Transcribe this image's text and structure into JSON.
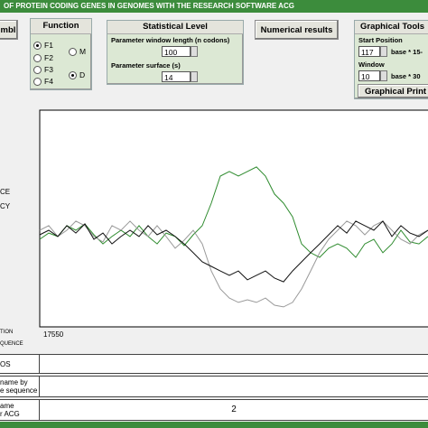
{
  "header": {
    "title": "OF PROTEIN CODING GENES IN GENOMES WITH THE RESEARCH SOFTWARE ACG"
  },
  "buttons": {
    "left": "mbl",
    "numerical": "Numerical results",
    "print": "Graphical Print"
  },
  "function_panel": {
    "title": "Function",
    "options": [
      "F1",
      "F2",
      "F3",
      "F4"
    ],
    "strands": [
      "M",
      "D"
    ]
  },
  "statistical_panel": {
    "title": "Statistical Level",
    "window_label": "Parameter window length (n codons)",
    "window_value": 100,
    "surface_label": "Parameter surface (s)",
    "surface_value": 14
  },
  "tools_panel": {
    "title": "Graphical Tools",
    "start_label": "Start Position",
    "start_value": 117,
    "start_unit": "base * 15-",
    "window_label": "Window",
    "window_value": 10,
    "window_unit": "base * 30"
  },
  "side_labels": [
    "CE",
    "CY",
    "TION",
    "QUENCE"
  ],
  "position": 17550,
  "table": {
    "rows": [
      {
        "label": [
          "OS"
        ]
      },
      {
        "label": [
          "name by",
          "e sequence"
        ]
      },
      {
        "label": [
          "ame",
          "r ACG"
        ],
        "value": 2
      }
    ]
  },
  "plot": {
    "ylim": [
      0,
      100
    ],
    "series": [
      {
        "color": "#2e8b2e",
        "values": [
          40.4,
          43.3,
          41.7,
          46.7,
          44.6,
          47.5,
          42.5,
          38.3,
          41.7,
          44.6,
          41.7,
          46.7,
          41.7,
          38.3,
          43.3,
          41.7,
          37.5,
          42.5,
          46.7,
          57.1,
          69.6,
          71.7,
          69.6,
          71.7,
          73.8,
          69.6,
          61.3,
          57.1,
          50.8,
          38.3,
          34.2,
          32.1,
          36.3,
          38.3,
          36.3,
          32.1,
          38.3,
          40.4,
          34.2,
          38.3,
          44.6,
          39.2,
          38.3,
          41.7
        ]
      },
      {
        "color": "#999999",
        "values": [
          44.6,
          46.7,
          41.7,
          44.6,
          48.8,
          46.7,
          41.7,
          39.2,
          46.7,
          44.6,
          48.8,
          44.6,
          41.7,
          46.7,
          41.7,
          36.3,
          40,
          44.6,
          38.3,
          25.8,
          17.5,
          13.3,
          11.3,
          12.5,
          11.3,
          13.3,
          10,
          9.2,
          11.3,
          17.5,
          25.8,
          34.2,
          40.4,
          44.6,
          48.8,
          46.7,
          42.5,
          46.7,
          48.8,
          44.6,
          40.4,
          38.3,
          42.5,
          44.6
        ]
      },
      {
        "color": "#111111",
        "values": [
          42.5,
          44.6,
          41.7,
          46.7,
          43.3,
          47.5,
          40.4,
          43.3,
          38.3,
          41.7,
          44.6,
          41.7,
          46.7,
          42.5,
          44.6,
          41.7,
          38.3,
          34.2,
          30,
          27.9,
          25.8,
          23.8,
          25.8,
          21.7,
          23.8,
          25.8,
          22.5,
          20.8,
          25.8,
          30,
          34.2,
          38.3,
          42.5,
          46.7,
          43.3,
          48.8,
          46.7,
          44.6,
          48.8,
          41.7,
          46.7,
          43.3,
          41.7,
          44.6
        ]
      }
    ]
  }
}
